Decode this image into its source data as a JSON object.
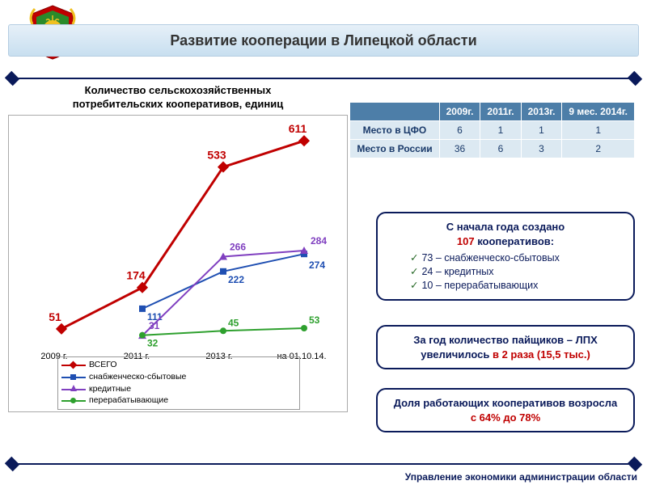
{
  "header": {
    "title": "Развитие кооперации в Липецкой области"
  },
  "footer": {
    "label": "Управление экономики администрации области"
  },
  "chart": {
    "title": "Количество сельскохозяйственных потребительских кооперативов, единиц",
    "x_labels": [
      "2009 г.",
      "2011 г.",
      "2013 г.",
      "на 01.10.14."
    ],
    "ylim": [
      0,
      650
    ],
    "series": [
      {
        "name": "ВСЕГО",
        "color": "#c00000",
        "marker": "diamond",
        "values": [
          51,
          174,
          533,
          611
        ]
      },
      {
        "name": "снабженческо-сбытовые",
        "color": "#1f4fb2",
        "marker": "square",
        "values": [
          null,
          111,
          222,
          274
        ]
      },
      {
        "name": "кредитные",
        "color": "#8040c0",
        "marker": "triangle",
        "values": [
          null,
          31,
          266,
          284
        ]
      },
      {
        "name": "перерабатывающие",
        "color": "#2ea02e",
        "marker": "circle",
        "values": [
          null,
          32,
          45,
          53
        ]
      }
    ],
    "legend": [
      "ВСЕГО",
      "снабженческо-сбытовые",
      "кредитные",
      "перерабатывающие"
    ]
  },
  "table": {
    "headers": [
      "",
      "2009г.",
      "2011г.",
      "2013г.",
      "9 мес. 2014г."
    ],
    "rows": [
      {
        "label": "Место в ЦФО",
        "cells": [
          "6",
          "1",
          "1",
          "1"
        ]
      },
      {
        "label": "Место в России",
        "cells": [
          "36",
          "6",
          "3",
          "2"
        ]
      }
    ]
  },
  "box1": {
    "line1": "С начала года создано",
    "line2_num": "107",
    "line2_rest": " кооперативов:",
    "items": [
      "73 – снабженческо-сбытовых",
      "24 – кредитных",
      "10 – перерабатывающих"
    ]
  },
  "box2": {
    "text_a": "За год количество пайщиков – ЛПХ  увеличилось ",
    "text_b": "в 2 раза (15,5 тыс.)"
  },
  "box3": {
    "text_a": "Доля работающих кооперативов возросла",
    "text_b": "с 64% до 78%"
  },
  "colors": {
    "crest_red": "#c00000",
    "crest_gold": "#f0c020",
    "crest_green": "#2a8a2a"
  }
}
